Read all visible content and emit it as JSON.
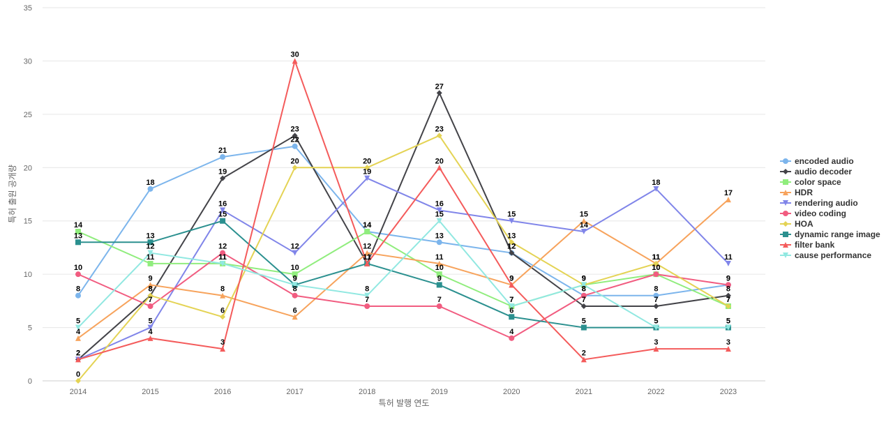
{
  "chart_data": {
    "type": "line",
    "title": "",
    "xlabel": "특허 발행 연도",
    "ylabel": "특허 출원 공개량",
    "ylim": [
      0,
      35
    ],
    "yticks": [
      0,
      5,
      10,
      15,
      20,
      25,
      30,
      35
    ],
    "grid": true,
    "legend": "right",
    "categories": [
      "2014",
      "2015",
      "2016",
      "2017",
      "2018",
      "2019",
      "2020",
      "2021",
      "2022",
      "2023"
    ],
    "series": [
      {
        "name": "encoded audio",
        "color": "#7cb5ec",
        "marker": "circle",
        "values": [
          8,
          18,
          21,
          22,
          14,
          13,
          12,
          8,
          8,
          9
        ]
      },
      {
        "name": "audio decoder",
        "color": "#434348",
        "marker": "diamond",
        "values": [
          2,
          8,
          19,
          23,
          11,
          27,
          12,
          7,
          7,
          8
        ]
      },
      {
        "name": "color space",
        "color": "#90ed7d",
        "marker": "square",
        "values": [
          14,
          11,
          11,
          10,
          14,
          10,
          7,
          9,
          10,
          7
        ]
      },
      {
        "name": "HDR",
        "color": "#f7a35c",
        "marker": "triangle",
        "values": [
          4,
          9,
          8,
          6,
          12,
          11,
          9,
          15,
          11,
          17
        ]
      },
      {
        "name": "rendering audio",
        "color": "#8085e9",
        "marker": "triangle-down",
        "values": [
          2,
          5,
          16,
          12,
          19,
          16,
          15,
          14,
          18,
          11
        ]
      },
      {
        "name": "video coding",
        "color": "#f15c80",
        "marker": "circle",
        "values": [
          10,
          7,
          12,
          8,
          7,
          7,
          4,
          8,
          10,
          9
        ]
      },
      {
        "name": "HOA",
        "color": "#e4d354",
        "marker": "diamond",
        "values": [
          0,
          8,
          6,
          20,
          20,
          23,
          13,
          9,
          11,
          7
        ]
      },
      {
        "name": "dynamic range image",
        "color": "#2b908f",
        "marker": "square",
        "values": [
          13,
          13,
          15,
          9,
          11,
          9,
          6,
          5,
          5,
          5
        ]
      },
      {
        "name": "filter bank",
        "color": "#f45b5b",
        "marker": "triangle",
        "values": [
          2,
          4,
          3,
          30,
          11,
          20,
          9,
          2,
          3,
          3
        ]
      },
      {
        "name": "cause performance",
        "color": "#91e8e1",
        "marker": "triangle-down",
        "values": [
          5,
          12,
          11,
          9,
          8,
          15,
          7,
          9,
          5,
          5
        ]
      }
    ]
  }
}
